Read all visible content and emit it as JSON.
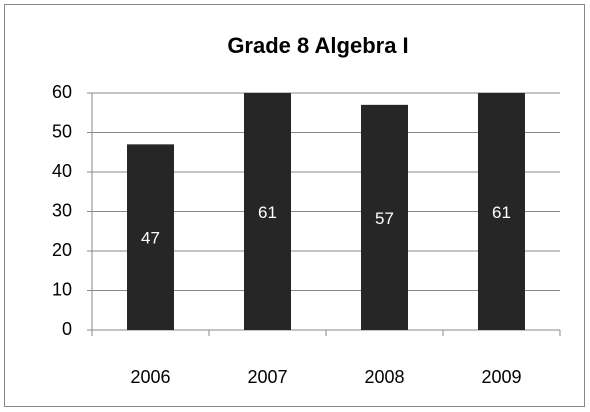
{
  "chart_data": {
    "type": "bar",
    "title": "Grade 8 Algebra I",
    "categories": [
      "2006",
      "2007",
      "2008",
      "2009"
    ],
    "values": [
      47,
      61,
      57,
      61
    ],
    "color": "#262626",
    "ylim": [
      0,
      60
    ],
    "yticks": [
      0,
      10,
      20,
      30,
      40,
      50,
      60
    ],
    "grid": true
  }
}
